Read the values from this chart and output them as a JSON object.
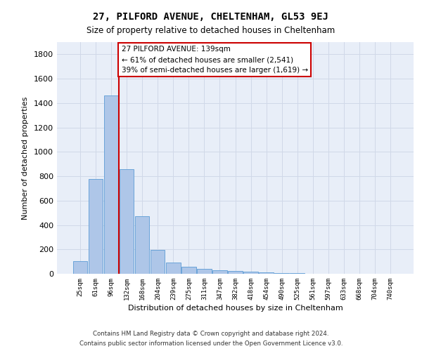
{
  "title_line1": "27, PILFORD AVENUE, CHELTENHAM, GL53 9EJ",
  "title_line2": "Size of property relative to detached houses in Cheltenham",
  "xlabel": "Distribution of detached houses by size in Cheltenham",
  "ylabel": "Number of detached properties",
  "categories": [
    "25sqm",
    "61sqm",
    "96sqm",
    "132sqm",
    "168sqm",
    "204sqm",
    "239sqm",
    "275sqm",
    "311sqm",
    "347sqm",
    "382sqm",
    "418sqm",
    "454sqm",
    "490sqm",
    "525sqm",
    "561sqm",
    "597sqm",
    "633sqm",
    "668sqm",
    "704sqm",
    "740sqm"
  ],
  "values": [
    105,
    775,
    1460,
    860,
    475,
    195,
    95,
    60,
    40,
    30,
    25,
    18,
    10,
    5,
    3,
    2,
    2,
    1,
    1,
    1,
    1
  ],
  "bar_color": "#aec6e8",
  "bar_edge_color": "#5b9bd5",
  "grid_color": "#d0d8e8",
  "bg_color": "#e8eef8",
  "vline_color": "#cc0000",
  "vline_x": 2.5,
  "annotation_text": "27 PILFORD AVENUE: 139sqm\n← 61% of detached houses are smaller (2,541)\n39% of semi-detached houses are larger (1,619) →",
  "annotation_box_color": "#ffffff",
  "annotation_box_edge_color": "#cc0000",
  "ylim": [
    0,
    1900
  ],
  "yticks": [
    0,
    200,
    400,
    600,
    800,
    1000,
    1200,
    1400,
    1600,
    1800
  ],
  "footer_line1": "Contains HM Land Registry data © Crown copyright and database right 2024.",
  "footer_line2": "Contains public sector information licensed under the Open Government Licence v3.0."
}
